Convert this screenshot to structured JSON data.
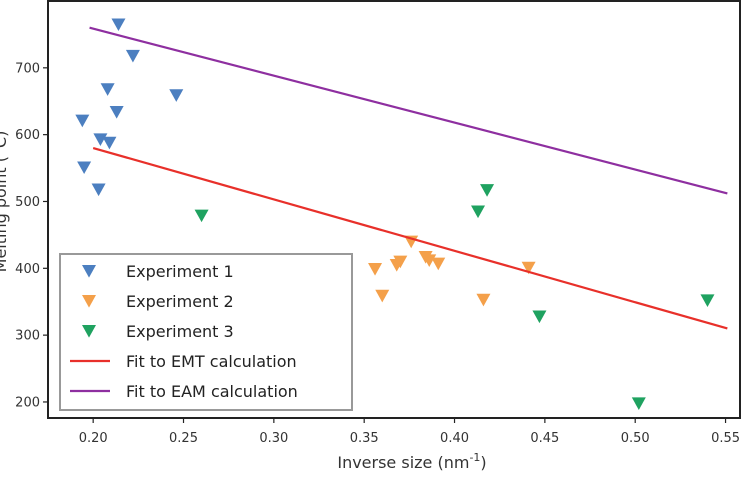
{
  "chart_data": {
    "type": "scatter",
    "title": "",
    "xlabel": "Inverse size (nm",
    "xlabel_sup": "-1",
    "xlabel_suffix": ")",
    "ylabel": "Melting point (°C)",
    "xlim": [
      0.175,
      0.558
    ],
    "ylim": [
      176,
      800
    ],
    "x_ticks": [
      0.2,
      0.25,
      0.3,
      0.35,
      0.4,
      0.45,
      0.5,
      0.55
    ],
    "x_tick_labels": [
      "0.20",
      "0.25",
      "0.30",
      "0.35",
      "0.40",
      "0.45",
      "0.50",
      "0.55"
    ],
    "y_ticks": [
      200,
      300,
      400,
      500,
      600,
      700
    ],
    "y_tick_labels": [
      "200",
      "300",
      "400",
      "500",
      "600",
      "700"
    ],
    "grid": false,
    "legend_position": "bottom-left",
    "series": [
      {
        "name": "Experiment 1",
        "color": "#4c7fc0",
        "marker": "triangle-down",
        "points": [
          [
            0.214,
            765
          ],
          [
            0.222,
            718
          ],
          [
            0.208,
            668
          ],
          [
            0.246,
            659
          ],
          [
            0.213,
            634
          ],
          [
            0.194,
            621
          ],
          [
            0.204,
            593
          ],
          [
            0.209,
            588
          ],
          [
            0.195,
            551
          ],
          [
            0.203,
            518
          ]
        ]
      },
      {
        "name": "Experiment 2",
        "color": "#f4a04a",
        "marker": "triangle-down",
        "points": [
          [
            0.376,
            440
          ],
          [
            0.384,
            417
          ],
          [
            0.386,
            412
          ],
          [
            0.391,
            407
          ],
          [
            0.37,
            410
          ],
          [
            0.368,
            405
          ],
          [
            0.356,
            399
          ],
          [
            0.441,
            401
          ],
          [
            0.36,
            359
          ],
          [
            0.416,
            353
          ]
        ]
      },
      {
        "name": "Experiment 3",
        "color": "#1fa260",
        "marker": "triangle-down",
        "points": [
          [
            0.418,
            517
          ],
          [
            0.413,
            485
          ],
          [
            0.26,
            479
          ],
          [
            0.447,
            328
          ],
          [
            0.54,
            352
          ],
          [
            0.502,
            198
          ]
        ]
      },
      {
        "name": "Fit to EMT calculation",
        "color": "#e8302a",
        "type": "line",
        "points": [
          [
            0.2,
            580
          ],
          [
            0.551,
            310
          ]
        ]
      },
      {
        "name": "Fit to EAM calculation",
        "color": "#8e2fa0",
        "type": "line",
        "points": [
          [
            0.198,
            760
          ],
          [
            0.551,
            512
          ]
        ]
      }
    ]
  }
}
